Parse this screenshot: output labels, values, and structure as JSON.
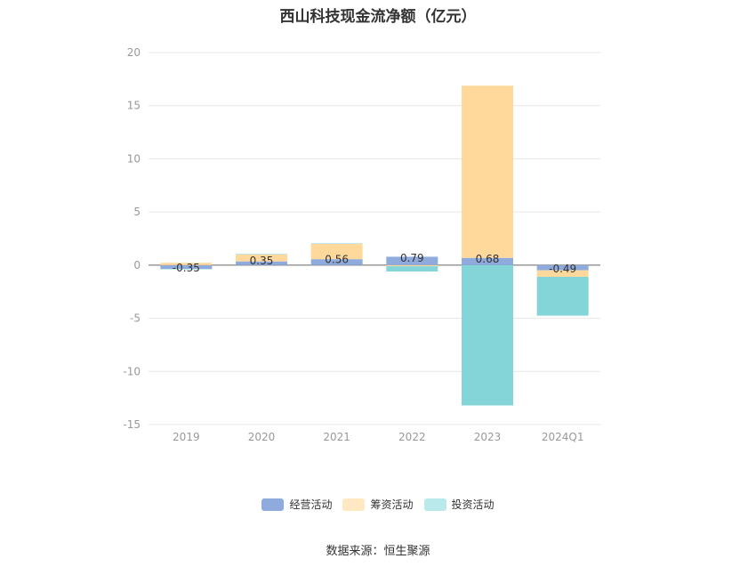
{
  "chart_data": {
    "type": "bar",
    "stacked": true,
    "title": "西山科技现金流净额（亿元）",
    "categories": [
      "2019",
      "2020",
      "2021",
      "2022",
      "2023",
      "2024Q1"
    ],
    "ylim": [
      -15,
      20
    ],
    "yticks": [
      20,
      15,
      10,
      5,
      0,
      -5,
      -10,
      -15
    ],
    "grid": true,
    "legend_position": "bottom",
    "series": [
      {
        "name": "经营活动",
        "color": "#8faadc",
        "values": [
          -0.35,
          0.35,
          0.56,
          0.79,
          0.68,
          -0.49
        ]
      },
      {
        "name": "筹资活动",
        "color": "#ffd99b",
        "values": [
          0.22,
          0.68,
          1.46,
          -0.1,
          16.2,
          -0.61
        ]
      },
      {
        "name": "投资活动",
        "color": "#84d5d8",
        "values": [
          -0.03,
          0.01,
          0.02,
          -0.5,
          -13.2,
          -3.65
        ]
      }
    ],
    "data_labels": [
      "-0.35",
      "0.35",
      "0.56",
      "0.79",
      "0.68",
      "-0.49"
    ]
  },
  "legend": {
    "items": [
      {
        "label": "经营活动",
        "color": "#8faadc"
      },
      {
        "label": "筹资活动",
        "color": "#ffe8c2"
      },
      {
        "label": "投资活动",
        "color": "#b9e9ea"
      }
    ]
  },
  "source": "数据来源：恒生聚源"
}
